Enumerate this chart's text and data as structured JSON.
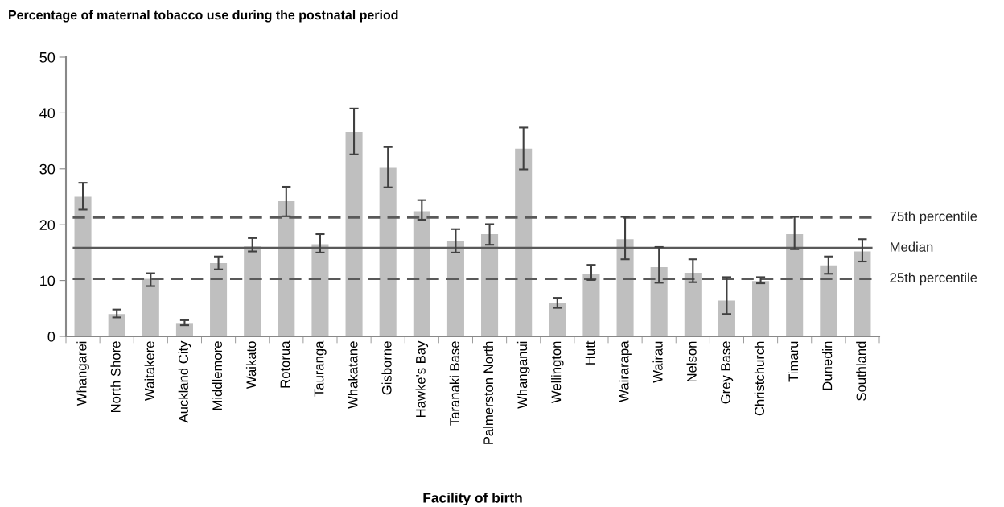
{
  "chart_data": {
    "type": "bar",
    "title": "Percentage of maternal tobacco use during the postnatal period",
    "xlabel": "Facility of birth",
    "categories": [
      "Whangarei",
      "North Shore",
      "Waitakere",
      "Auckland City",
      "Middlemore",
      "Waikato",
      "Rotorua",
      "Tauranga",
      "Whakatane",
      "Gisborne",
      "Hawke's Bay",
      "Taranaki Base",
      "Palmerston North",
      "Whanganui",
      "Wellington",
      "Hutt",
      "Wairarapa",
      "Wairau",
      "Nelson",
      "Grey Base",
      "Christchurch",
      "Timaru",
      "Dunedin",
      "Southland"
    ],
    "values": [
      25,
      4,
      10.3,
      2.4,
      13.1,
      16.1,
      24.2,
      16.5,
      36.6,
      30.2,
      22.4,
      17,
      18.3,
      33.6,
      6,
      11.2,
      17.4,
      12.4,
      11.4,
      6.4,
      9.9,
      18.3,
      12.7,
      15.2
    ],
    "errors": [
      [
        22.7,
        27.5
      ],
      [
        3.4,
        4.8
      ],
      [
        9,
        11.3
      ],
      [
        2,
        2.9
      ],
      [
        12,
        14.3
      ],
      [
        15.2,
        17.6
      ],
      [
        21.5,
        26.8
      ],
      [
        15,
        18.3
      ],
      [
        32.6,
        40.8
      ],
      [
        26.7,
        33.9
      ],
      [
        20.9,
        24.4
      ],
      [
        15,
        19.2
      ],
      [
        16.4,
        20.1
      ],
      [
        29.9,
        37.4
      ],
      [
        5.1,
        6.9
      ],
      [
        10.1,
        12.8
      ],
      [
        13.8,
        21.4
      ],
      [
        9.6,
        16
      ],
      [
        9.7,
        13.8
      ],
      [
        4,
        10.6
      ],
      [
        9.5,
        10.6
      ],
      [
        15.6,
        21.4
      ],
      [
        11.2,
        14.3
      ],
      [
        13.4,
        17.4
      ]
    ],
    "color": "#bfbfbf",
    "ylim": [
      0,
      50
    ],
    "yticks": [
      0,
      10,
      20,
      30,
      40,
      50
    ],
    "grid": false,
    "legend": false,
    "ref_lines": [
      {
        "axis": "y",
        "value": 21.3,
        "label": "75th percentile",
        "color": "#595959",
        "line_style": "dashed"
      },
      {
        "axis": "y",
        "value": 15.8,
        "label": "Median",
        "color": "#595959",
        "line_style": "solid"
      },
      {
        "axis": "y",
        "value": 10.3,
        "label": "25th percentile",
        "color": "#595959",
        "line_style": "dashed"
      }
    ]
  }
}
